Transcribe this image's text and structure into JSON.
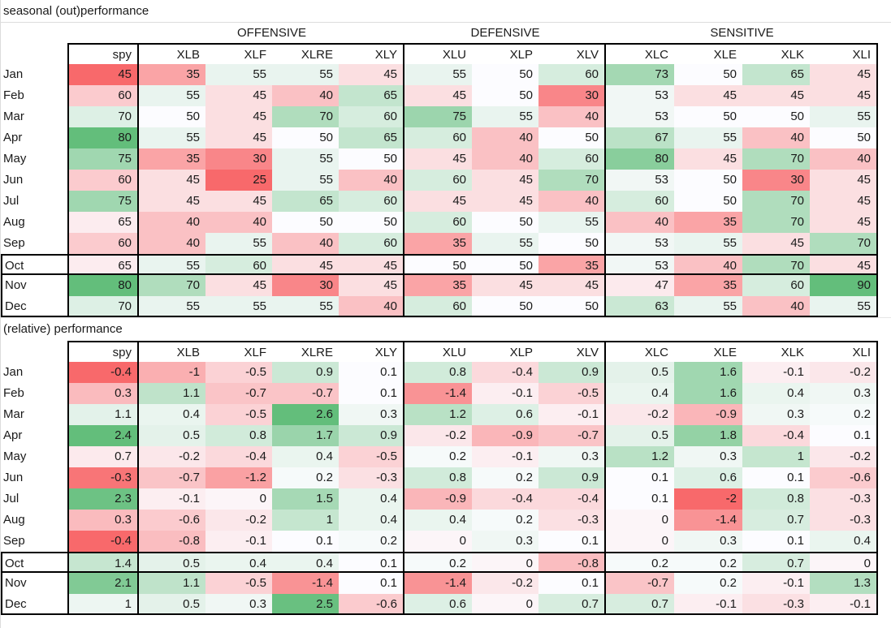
{
  "sheet": {
    "section1_title": "seasonal (out)performance",
    "section2_title": "(relative) performance",
    "group_headers": [
      "OFFENSIVE",
      "DEFENSIVE",
      "SENSITIVE"
    ],
    "colorscale": {
      "min_color": "#F8696B",
      "mid_color": "#FCFCFF",
      "max_color": "#63BE7B",
      "midpoint": "50th percentile",
      "regions": "spy column and ETF columns are scaled as separate regions within each table"
    }
  },
  "chart_data": [
    {
      "type": "heatmap",
      "title": "seasonal (out)performance",
      "x_labels": [
        "spy",
        "XLB",
        "XLF",
        "XLRE",
        "XLY",
        "XLU",
        "XLP",
        "XLV",
        "XLC",
        "XLE",
        "XLK",
        "XLI"
      ],
      "y_labels": [
        "Jan",
        "Feb",
        "Mar",
        "Apr",
        "May",
        "Jun",
        "Jul",
        "Aug",
        "Sep",
        "Oct",
        "Nov",
        "Dec"
      ],
      "rows": [
        [
          45,
          35,
          55,
          55,
          45,
          55,
          50,
          60,
          73,
          50,
          65,
          45
        ],
        [
          60,
          55,
          45,
          40,
          65,
          45,
          50,
          30,
          53,
          45,
          45,
          45
        ],
        [
          70,
          50,
          45,
          70,
          60,
          75,
          55,
          40,
          53,
          50,
          50,
          55
        ],
        [
          80,
          55,
          45,
          50,
          65,
          60,
          40,
          50,
          67,
          55,
          40,
          50
        ],
        [
          75,
          35,
          30,
          55,
          50,
          45,
          40,
          60,
          80,
          45,
          70,
          40
        ],
        [
          60,
          45,
          25,
          55,
          40,
          60,
          45,
          70,
          53,
          50,
          30,
          45
        ],
        [
          75,
          45,
          45,
          65,
          60,
          45,
          45,
          40,
          60,
          50,
          70,
          45
        ],
        [
          65,
          40,
          40,
          50,
          50,
          60,
          50,
          55,
          40,
          35,
          70,
          45
        ],
        [
          60,
          40,
          55,
          40,
          60,
          35,
          55,
          50,
          53,
          55,
          45,
          70
        ],
        [
          65,
          55,
          60,
          45,
          45,
          50,
          50,
          35,
          53,
          40,
          70,
          45
        ],
        [
          80,
          70,
          45,
          30,
          45,
          35,
          45,
          45,
          47,
          35,
          60,
          90
        ],
        [
          70,
          55,
          55,
          55,
          40,
          60,
          50,
          50,
          63,
          55,
          40,
          55
        ]
      ]
    },
    {
      "type": "heatmap",
      "title": "(relative) performance",
      "x_labels": [
        "spy",
        "XLB",
        "XLF",
        "XLRE",
        "XLY",
        "XLU",
        "XLP",
        "XLV",
        "XLC",
        "XLE",
        "XLK",
        "XLI"
      ],
      "y_labels": [
        "Jan",
        "Feb",
        "Mar",
        "Apr",
        "May",
        "Jun",
        "Jul",
        "Aug",
        "Sep",
        "Oct",
        "Nov",
        "Dec"
      ],
      "rows": [
        [
          -0.4,
          -1,
          -0.5,
          0.9,
          0.1,
          0.8,
          -0.4,
          0.9,
          0.5,
          1.6,
          -0.1,
          -0.2
        ],
        [
          0.3,
          1.1,
          -0.7,
          -0.7,
          0.1,
          -1.4,
          -0.1,
          -0.5,
          0.4,
          1.6,
          0.4,
          0.3
        ],
        [
          1.1,
          0.4,
          -0.5,
          2.6,
          0.3,
          1.2,
          0.6,
          -0.1,
          -0.2,
          -0.9,
          0.3,
          0.2
        ],
        [
          2.4,
          0.5,
          0.8,
          1.7,
          0.9,
          -0.2,
          -0.9,
          -0.7,
          0.5,
          1.8,
          -0.4,
          0.1
        ],
        [
          0.7,
          -0.2,
          -0.4,
          0.4,
          -0.5,
          0.2,
          -0.1,
          0.3,
          1.2,
          0.3,
          1,
          -0.2
        ],
        [
          -0.3,
          -0.7,
          -1.2,
          0.2,
          -0.3,
          0.8,
          0.2,
          0.9,
          0.1,
          0.6,
          0.1,
          -0.6
        ],
        [
          2.3,
          -0.1,
          0,
          1.5,
          0.4,
          -0.9,
          -0.4,
          -0.4,
          0.1,
          -2,
          0.8,
          -0.3
        ],
        [
          0.3,
          -0.6,
          -0.2,
          1,
          0.4,
          0.4,
          0.2,
          -0.3,
          0,
          -1.4,
          0.7,
          -0.3
        ],
        [
          -0.4,
          -0.8,
          -0.1,
          0.1,
          0.2,
          0,
          0.3,
          0.1,
          0,
          0.3,
          0.1,
          0.4
        ],
        [
          1.4,
          0.5,
          0.4,
          0.4,
          0.1,
          0.2,
          0,
          -0.8,
          0.2,
          0.2,
          0.7,
          0
        ],
        [
          2.1,
          1.1,
          -0.5,
          -1.4,
          0.1,
          -1.4,
          -0.2,
          0.1,
          -0.7,
          0.2,
          -0.1,
          1.3
        ],
        [
          1,
          0.5,
          0.3,
          2.5,
          -0.6,
          0.6,
          0,
          0.7,
          0.7,
          -0.1,
          -0.3,
          -0.1
        ]
      ]
    }
  ]
}
